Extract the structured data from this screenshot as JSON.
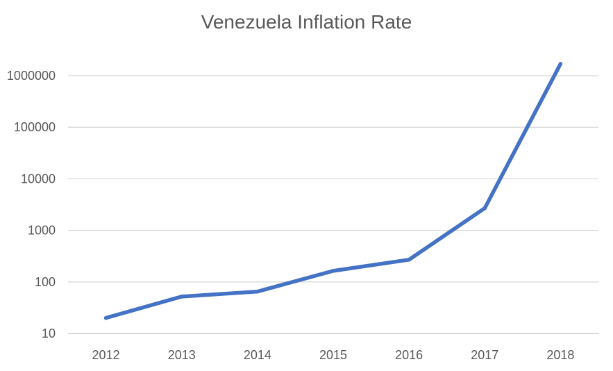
{
  "chart_data": {
    "type": "line",
    "title": "Venezuela Inflation Rate",
    "categories": [
      "2012",
      "2013",
      "2014",
      "2015",
      "2016",
      "2017",
      "2018"
    ],
    "series": [
      {
        "values": [
          20,
          52,
          65,
          164,
          270,
          2700,
          1700000
        ],
        "color": "#4472C4"
      }
    ],
    "yscale": "log",
    "ylim": [
      10,
      1000000
    ],
    "yticks": [
      "10",
      "100",
      "1000",
      "10000",
      "100000",
      "1000000"
    ],
    "grid": true,
    "xlabel": "",
    "ylabel": ""
  }
}
